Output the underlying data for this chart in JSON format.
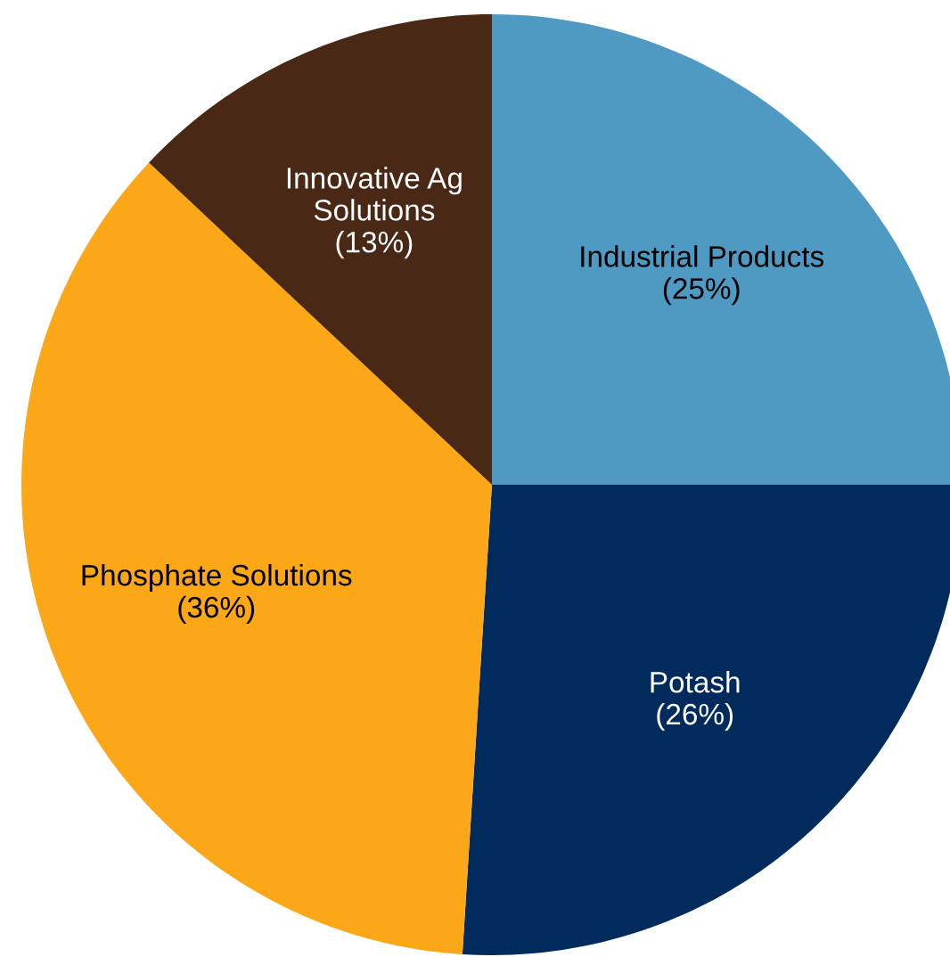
{
  "chart_data": {
    "type": "pie",
    "categories": [
      "Industrial Products",
      "Potash",
      "Phosphate Solutions",
      "Innovative Ag\nSolutions"
    ],
    "values": [
      25,
      26,
      36,
      13
    ],
    "value_labels": [
      "(25%)",
      "(26%)",
      "(36%)",
      "(13%)"
    ],
    "colors": [
      "#4f9ac3",
      "#002b5c",
      "#fca718",
      "#4a2816"
    ]
  }
}
